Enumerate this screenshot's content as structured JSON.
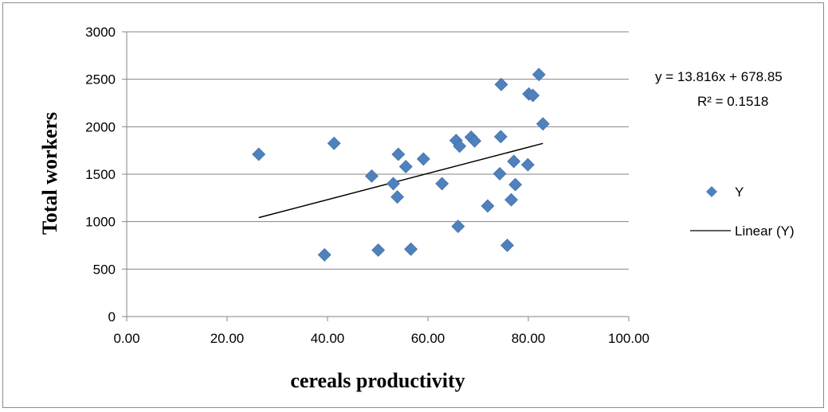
{
  "chart_data": {
    "type": "scatter",
    "title": "",
    "xlabel": "cereals productivity",
    "ylabel": "Total workers",
    "xlim": [
      0,
      100
    ],
    "ylim": [
      0,
      3000
    ],
    "x_ticks": [
      "0.00",
      "20.00",
      "40.00",
      "60.00",
      "80.00",
      "100.00"
    ],
    "y_ticks": [
      "0",
      "500",
      "1000",
      "1500",
      "2000",
      "2500",
      "3000"
    ],
    "x_tick_values": [
      0,
      20,
      40,
      60,
      80,
      100
    ],
    "y_tick_values": [
      0,
      500,
      1000,
      1500,
      2000,
      2500,
      3000
    ],
    "grid": "horizontal",
    "legend_position": "right",
    "series": [
      {
        "name": "Y",
        "color": "#4f81bd",
        "marker": "diamond",
        "points": [
          {
            "x": 26.3,
            "y": 1710
          },
          {
            "x": 39.4,
            "y": 650
          },
          {
            "x": 41.3,
            "y": 1825
          },
          {
            "x": 48.8,
            "y": 1480
          },
          {
            "x": 50.1,
            "y": 700
          },
          {
            "x": 53.1,
            "y": 1400
          },
          {
            "x": 53.9,
            "y": 1260
          },
          {
            "x": 54.1,
            "y": 1710
          },
          {
            "x": 55.6,
            "y": 1580
          },
          {
            "x": 56.6,
            "y": 710
          },
          {
            "x": 59.1,
            "y": 1660
          },
          {
            "x": 62.8,
            "y": 1400
          },
          {
            "x": 65.6,
            "y": 1855
          },
          {
            "x": 66.0,
            "y": 950
          },
          {
            "x": 66.3,
            "y": 1795
          },
          {
            "x": 68.6,
            "y": 1890
          },
          {
            "x": 69.3,
            "y": 1850
          },
          {
            "x": 71.9,
            "y": 1165
          },
          {
            "x": 74.3,
            "y": 1505
          },
          {
            "x": 74.5,
            "y": 1895
          },
          {
            "x": 74.6,
            "y": 2445
          },
          {
            "x": 75.8,
            "y": 750
          },
          {
            "x": 76.6,
            "y": 1230
          },
          {
            "x": 77.1,
            "y": 1635
          },
          {
            "x": 77.4,
            "y": 1390
          },
          {
            "x": 79.9,
            "y": 1600
          },
          {
            "x": 80.1,
            "y": 2345
          },
          {
            "x": 80.9,
            "y": 2330
          },
          {
            "x": 82.1,
            "y": 2550
          },
          {
            "x": 82.9,
            "y": 2030
          }
        ]
      }
    ],
    "trendline": {
      "name": "Linear (Y)",
      "color": "#000000",
      "slope": 13.816,
      "intercept": 678.85,
      "x_range": [
        26.3,
        82.9
      ],
      "equation": "y = 13.816x + 678.85",
      "r_squared": "R² = 0.1518"
    },
    "legend": [
      {
        "label": "Y",
        "kind": "marker",
        "color": "#4f81bd"
      },
      {
        "label": "Linear (Y)",
        "kind": "line",
        "color": "#000000"
      }
    ]
  }
}
